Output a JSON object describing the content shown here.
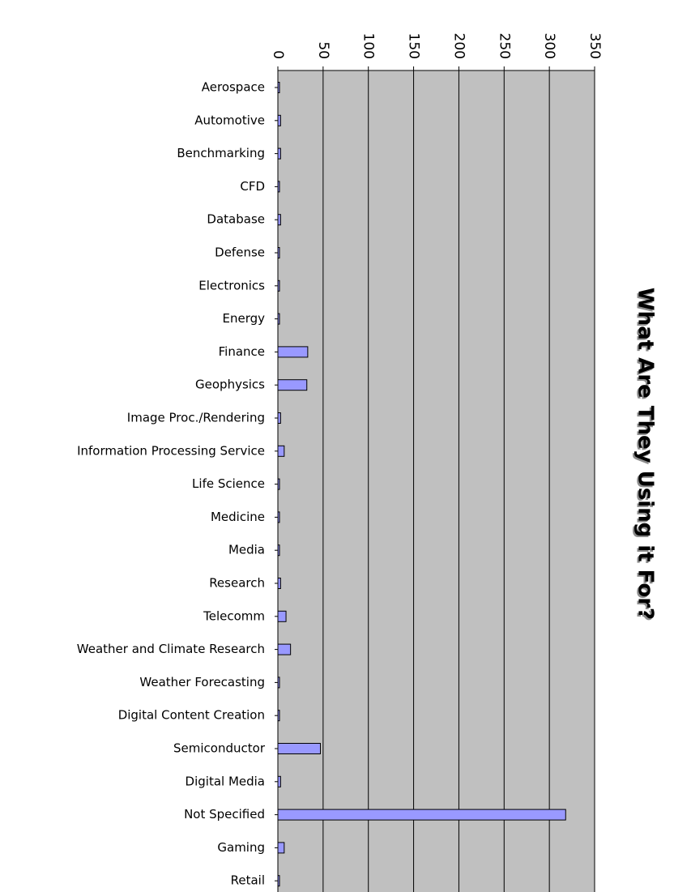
{
  "chart_data": {
    "type": "bar",
    "orientation": "horizontal",
    "title": "What Are They Using it For?",
    "categories": [
      "Aerospace",
      "Automotive",
      "Benchmarking",
      "CFD",
      "Database",
      "Defense",
      "Electronics",
      "Energy",
      "Finance",
      "Geophysics",
      "Image Proc./Rendering",
      "Information Processing Service",
      "Life Science",
      "Medicine",
      "Media",
      "Research",
      "Telecomm",
      "Weather and Climate Research",
      "Weather Forecasting",
      "Digital Content Creation",
      "Semiconductor",
      "Digital Media",
      "Not Specified",
      "Gaming",
      "Retail"
    ],
    "values": [
      1,
      3,
      3,
      1,
      3,
      1,
      1,
      1,
      33,
      32,
      3,
      7,
      1,
      1,
      1,
      3,
      9,
      14,
      1,
      1,
      47,
      3,
      318,
      7,
      1
    ],
    "ticks": [
      "0",
      "50",
      "100",
      "150",
      "200",
      "250",
      "300",
      "350"
    ],
    "xlim": [
      0,
      350
    ],
    "grid": true,
    "legend": false,
    "colors": {
      "bar_fill": "#9999ff",
      "bar_stroke": "#000000",
      "plot_background": "#c0c0c0",
      "gridline": "#000000"
    }
  }
}
